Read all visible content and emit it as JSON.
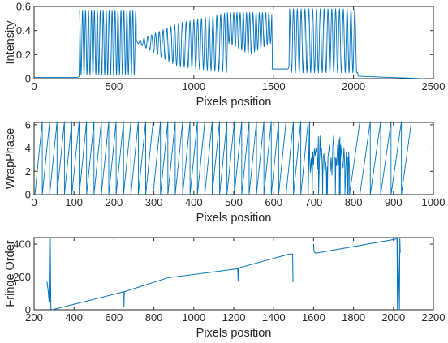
{
  "chart_data": [
    {
      "type": "line",
      "xlabel": "Pixels position",
      "ylabel": "Intensity",
      "xlim": [
        0,
        2500
      ],
      "ylim": [
        0,
        0.6
      ],
      "xticks": [
        0,
        500,
        1000,
        1500,
        2000,
        2500
      ],
      "yticks": [
        0,
        0.2,
        0.4,
        0.6
      ],
      "tick_labels_x": [
        "0",
        "500",
        "1000",
        "1500",
        "2000",
        "2500"
      ],
      "tick_labels_y": [
        "0",
        "0.2",
        "0.4",
        "0.6"
      ],
      "grid": false,
      "color": "#0072BD",
      "series": [
        {
          "description": "fringe intensity profile",
          "regions": [
            {
              "x_start": 0,
              "x_end": 270,
              "value": 0.01
            },
            {
              "x_start": 285,
              "x_end": 640,
              "min": 0.03,
              "max": 0.57,
              "fringe_period_px": 18.5
            },
            {
              "x_start": 640,
              "x_end": 1210,
              "min_envelope": [
                [
                  640,
                  0.3
                ],
                [
                  900,
                  0.1
                ],
                [
                  1210,
                  0.05
                ]
              ],
              "max_envelope": [
                [
                  640,
                  0.31
                ],
                [
                  900,
                  0.46
                ],
                [
                  1210,
                  0.55
                ]
              ],
              "fringe_period_px": 24
            },
            {
              "x_start": 1210,
              "x_end": 1490,
              "min_envelope": [
                [
                  1210,
                  0.3
                ],
                [
                  1350,
                  0.2
                ],
                [
                  1490,
                  0.3
                ]
              ],
              "max_envelope": [
                [
                  1210,
                  0.55
                ],
                [
                  1490,
                  0.55
                ]
              ],
              "fringe_period_px": 20
            },
            {
              "x_start": 1490,
              "x_end": 1590,
              "value": 0.08
            },
            {
              "x_start": 1600,
              "x_end": 2020,
              "min": 0.05,
              "max": 0.58,
              "fringe_period_px": 24
            },
            {
              "x_start": 2030,
              "x_end": 2440,
              "value_start": 0.02,
              "value_end": 0.0
            }
          ]
        }
      ]
    },
    {
      "type": "line",
      "xlabel": "Pixels position",
      "ylabel": "WrapPhase",
      "xlim": [
        0,
        1000
      ],
      "ylim": [
        0,
        6.2
      ],
      "xticks": [
        0,
        100,
        200,
        300,
        400,
        500,
        600,
        700,
        800,
        900,
        1000
      ],
      "yticks": [
        0,
        2,
        4,
        6
      ],
      "tick_labels_x": [
        "0",
        "100",
        "200",
        "300",
        "400",
        "500",
        "600",
        "700",
        "800",
        "900",
        "1000"
      ],
      "tick_labels_y": [
        "0",
        "2",
        "4",
        "6"
      ],
      "grid": false,
      "color": "#0072BD",
      "series": [
        {
          "description": "wrapped phase sawtooth",
          "sawtooth_start_x": 2,
          "sawtooth_period_x": 18.5,
          "sawtooth_end_x": 690,
          "phase_min": 0,
          "phase_max": 6.28,
          "noisy_region": {
            "x_start": 690,
            "x_end": 790,
            "level_range": [
              1.5,
              5.2
            ]
          },
          "late_sawtooth": {
            "x_start": 790,
            "x_end": 945,
            "period_x": 26
          }
        }
      ]
    },
    {
      "type": "line",
      "xlabel": "Pixels position",
      "ylabel": "Fringe Order",
      "xlim": [
        200,
        2200
      ],
      "ylim": [
        0,
        440
      ],
      "xticks": [
        200,
        400,
        600,
        800,
        1000,
        1200,
        1400,
        1600,
        1800,
        2000,
        2200
      ],
      "yticks": [
        0,
        200,
        400
      ],
      "tick_labels_x": [
        "200",
        "400",
        "600",
        "800",
        "1000",
        "1200",
        "1400",
        "1600",
        "1800",
        "2000",
        "2200"
      ],
      "tick_labels_y": [
        "0",
        "200",
        "400"
      ],
      "grid": false,
      "color": "#0072BD",
      "series": [
        {
          "description": "fringe order staircase",
          "points": [
            [
              265,
              170
            ],
            [
              270,
              120
            ],
            [
              275,
              50
            ],
            [
              278,
              440
            ],
            [
              281,
              440
            ],
            [
              284,
              5
            ],
            [
              290,
              0
            ],
            [
              650,
              110
            ],
            [
              650,
              20
            ],
            [
              652,
              110
            ],
            [
              870,
              195
            ],
            [
              1220,
              250
            ],
            [
              1222,
              180
            ],
            [
              1224,
              255
            ],
            [
              1480,
              340
            ],
            [
              1495,
              340
            ],
            [
              1497,
              170
            ]
          ],
          "second_segment": [
            [
              1600,
              400
            ],
            [
              1602,
              355
            ],
            [
              1610,
              345
            ],
            [
              2010,
              430
            ],
            [
              2015,
              435
            ],
            [
              2018,
              430
            ],
            [
              2020,
              5
            ],
            [
              2022,
              435
            ],
            [
              2030,
              0
            ],
            [
              2032,
              440
            ],
            [
              2034,
              350
            ]
          ]
        }
      ]
    }
  ]
}
